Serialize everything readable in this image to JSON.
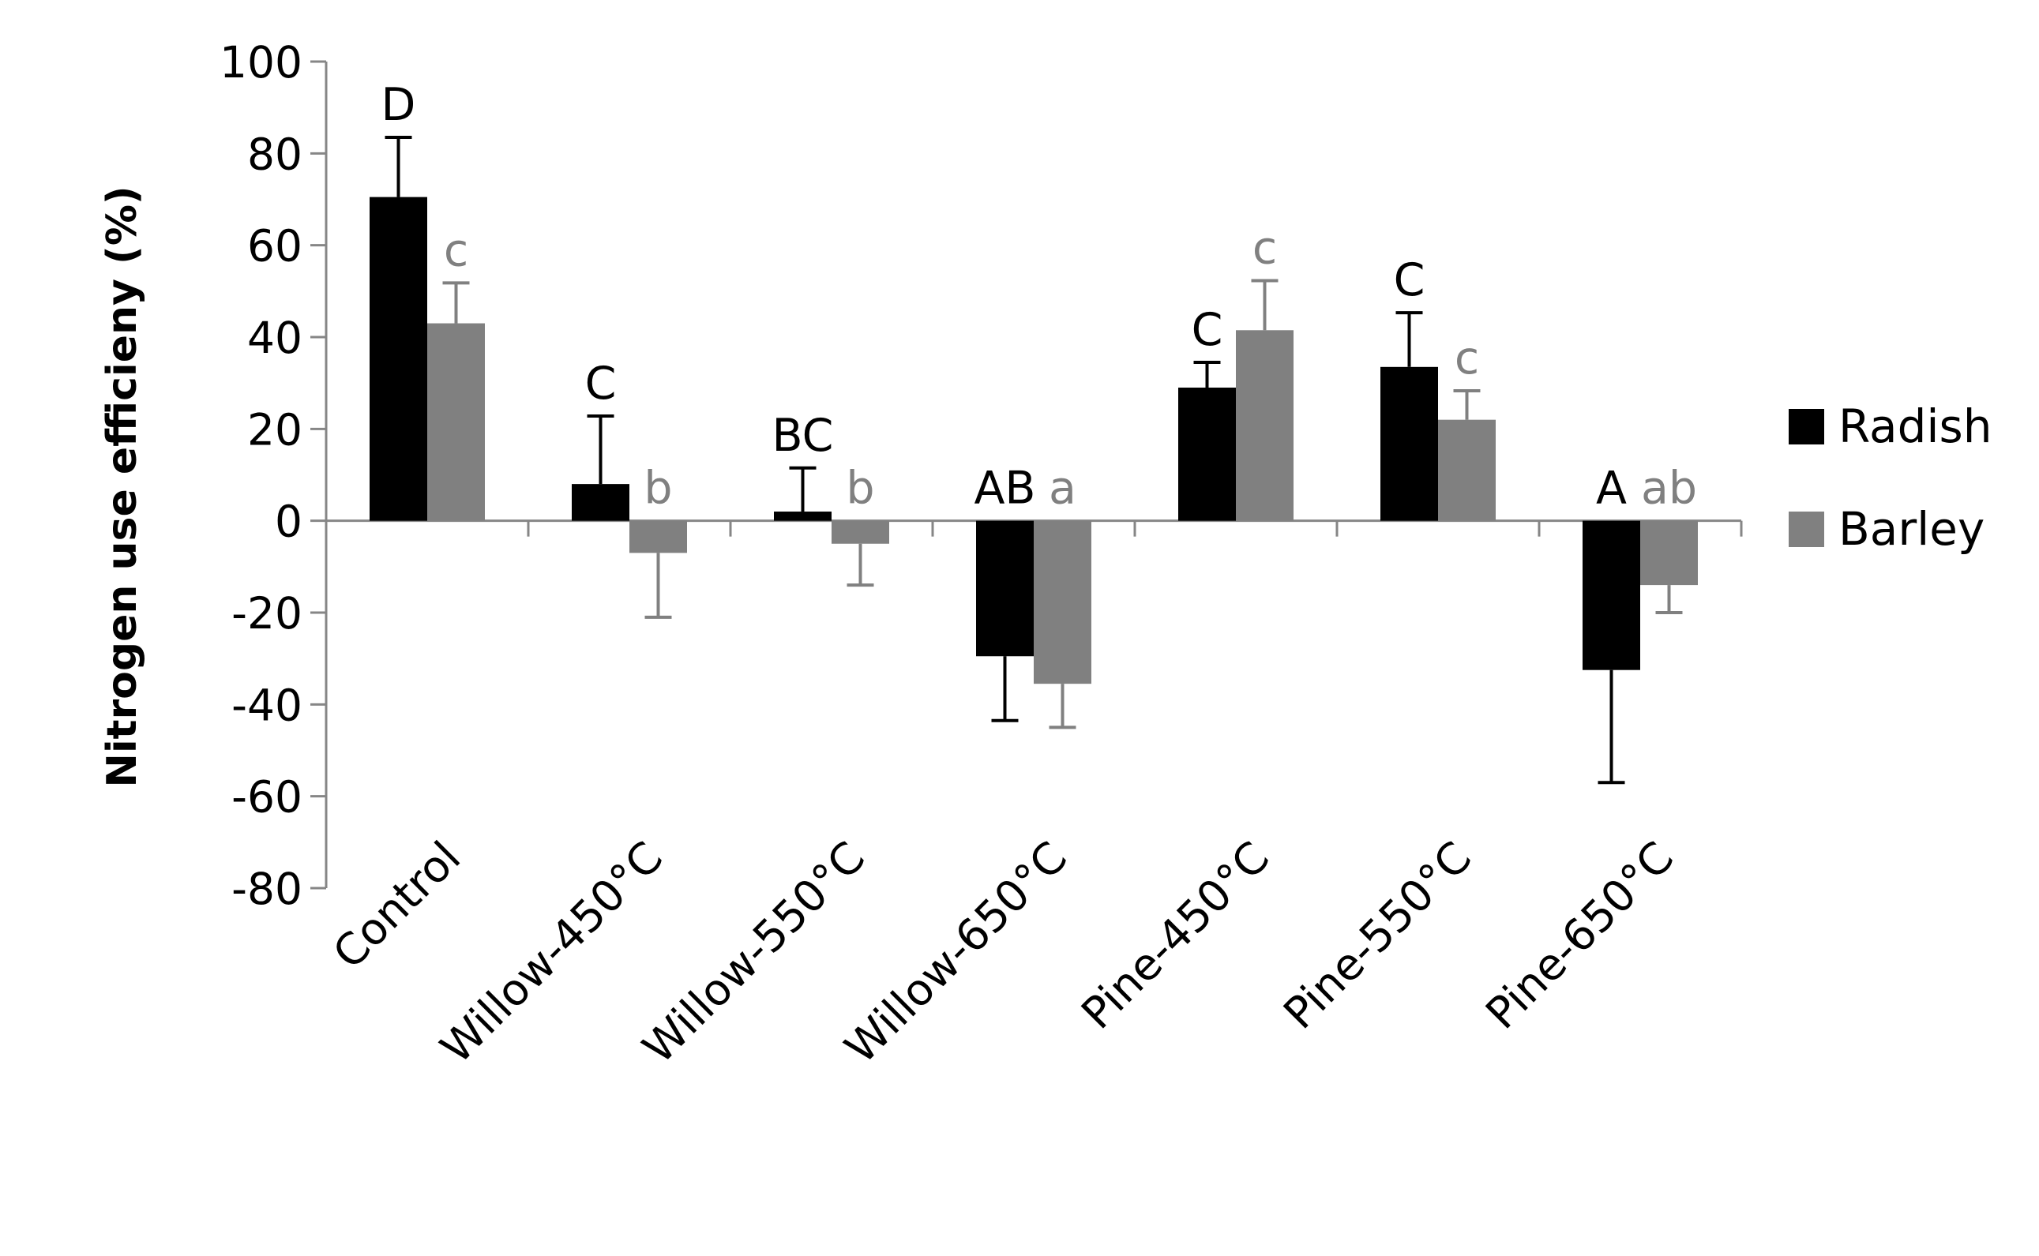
{
  "chart_data": {
    "type": "bar",
    "title": "",
    "xlabel": "",
    "ylabel": "Nitrogen use efficieny (%)",
    "ylim": [
      -80,
      100
    ],
    "yticks": [
      100,
      80,
      60,
      40,
      20,
      0,
      -20,
      -40,
      -60,
      -80
    ],
    "grid": false,
    "legend_position": "right",
    "categories": [
      "Control",
      "Willow-450°C",
      "Willow-550°C",
      "Willow-650°C",
      "Pine-450°C",
      "Pine-550°C",
      "Pine-650°C"
    ],
    "series": [
      {
        "name": "Radish",
        "color": "#000000",
        "values": [
          70.5,
          8.0,
          2.0,
          -29.5,
          29.0,
          33.5,
          -32.5
        ],
        "errors": [
          13.0,
          14.8,
          9.5,
          14.0,
          5.5,
          11.8,
          24.5
        ],
        "significance": [
          "D",
          "C",
          "BC",
          "AB",
          "C",
          "C",
          "A"
        ]
      },
      {
        "name": "Barley",
        "color": "#808080",
        "values": [
          43.0,
          -7.0,
          -5.0,
          -35.5,
          41.5,
          22.0,
          -14.0
        ],
        "errors": [
          8.8,
          14.0,
          9.0,
          9.5,
          10.8,
          6.3,
          6.0
        ],
        "significance": [
          "c",
          "b",
          "b",
          "a",
          "c",
          "c",
          "ab"
        ]
      }
    ]
  }
}
